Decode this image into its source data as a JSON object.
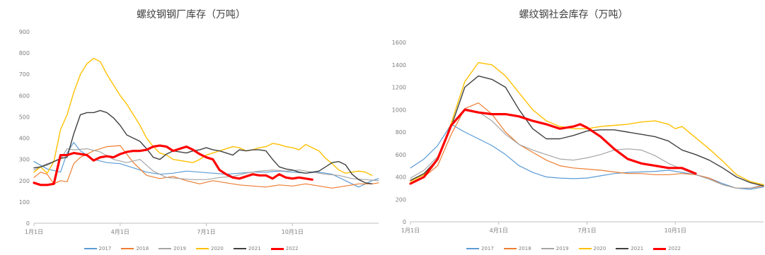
{
  "chart_data": [
    {
      "type": "line",
      "title": "螺纹钢钢厂库存（万吨）",
      "ylim": [
        0,
        900
      ],
      "yticks": [
        0,
        100,
        200,
        300,
        400,
        500,
        600,
        700,
        800,
        900
      ],
      "xlim": [
        0,
        52
      ],
      "x_ticks": [
        {
          "x": 0,
          "label": "1月1日"
        },
        {
          "x": 13,
          "label": "4月1日"
        },
        {
          "x": 26,
          "label": "7月1日"
        },
        {
          "x": 39,
          "label": "10月1日"
        }
      ],
      "legend": "bottom",
      "series": [
        {
          "name": "2017",
          "color": "#5b9bd5",
          "width": 1.2,
          "x": [
            0,
            2,
            4,
            5,
            6,
            7,
            9,
            11,
            13,
            15,
            17,
            19,
            21,
            23,
            25,
            27,
            29,
            31,
            33,
            35,
            37,
            39,
            41,
            43,
            45,
            47,
            49,
            51,
            52
          ],
          "y": [
            290,
            255,
            240,
            330,
            380,
            340,
            300,
            285,
            280,
            260,
            240,
            230,
            235,
            245,
            240,
            235,
            230,
            235,
            240,
            240,
            245,
            240,
            235,
            240,
            230,
            200,
            170,
            200,
            210
          ]
        },
        {
          "name": "2018",
          "color": "#ed7d31",
          "width": 1.2,
          "x": [
            0,
            1,
            2,
            3,
            4,
            5,
            6,
            7,
            9,
            11,
            13,
            15,
            17,
            19,
            21,
            23,
            25,
            27,
            29,
            31,
            33,
            35,
            37,
            39,
            41,
            43,
            45,
            47,
            49,
            51,
            52
          ],
          "y": [
            215,
            240,
            230,
            185,
            200,
            195,
            280,
            310,
            340,
            360,
            365,
            285,
            225,
            210,
            220,
            200,
            185,
            200,
            190,
            180,
            175,
            170,
            180,
            175,
            185,
            175,
            165,
            175,
            185,
            185,
            190
          ]
        },
        {
          "name": "2019",
          "color": "#a5a5a5",
          "width": 1.2,
          "x": [
            0,
            2,
            4,
            5,
            6,
            8,
            10,
            12,
            14,
            16,
            18,
            20,
            22,
            24,
            26,
            28,
            30,
            32,
            34,
            36,
            38,
            40,
            42,
            44,
            46,
            48,
            50,
            52
          ],
          "y": [
            250,
            280,
            300,
            350,
            345,
            350,
            335,
            300,
            285,
            300,
            245,
            215,
            210,
            205,
            205,
            215,
            220,
            235,
            245,
            250,
            245,
            250,
            240,
            230,
            225,
            210,
            205,
            200
          ]
        },
        {
          "name": "2020",
          "color": "#ffc000",
          "width": 1.4,
          "x": [
            0,
            1,
            2,
            3,
            4,
            5,
            6,
            7,
            8,
            9,
            10,
            11,
            12,
            13,
            14,
            15,
            16,
            17,
            18,
            19,
            20,
            21,
            22,
            23,
            24,
            25,
            26,
            27,
            28,
            29,
            30,
            31,
            32,
            33,
            34,
            35,
            36,
            37,
            38,
            39,
            40,
            41,
            42,
            43,
            44,
            45,
            46,
            47,
            48,
            49,
            50,
            51
          ],
          "y": [
            240,
            265,
            235,
            290,
            440,
            510,
            615,
            700,
            750,
            775,
            760,
            700,
            650,
            600,
            560,
            510,
            460,
            400,
            360,
            330,
            320,
            300,
            295,
            290,
            285,
            300,
            320,
            330,
            340,
            350,
            360,
            355,
            340,
            345,
            355,
            360,
            375,
            370,
            360,
            355,
            345,
            370,
            355,
            340,
            305,
            280,
            250,
            235,
            240,
            245,
            240,
            225
          ]
        },
        {
          "name": "2021",
          "color": "#404040",
          "width": 1.4,
          "x": [
            0,
            1,
            2,
            3,
            4,
            5,
            6,
            7,
            8,
            9,
            10,
            11,
            12,
            13,
            14,
            15,
            16,
            17,
            18,
            19,
            20,
            21,
            22,
            23,
            24,
            25,
            26,
            27,
            28,
            29,
            30,
            31,
            32,
            33,
            34,
            35,
            36,
            37,
            38,
            39,
            40,
            41,
            42,
            43,
            44,
            45,
            46,
            47,
            48,
            49,
            50,
            51
          ],
          "y": [
            260,
            265,
            275,
            290,
            305,
            310,
            420,
            510,
            520,
            520,
            530,
            520,
            495,
            460,
            415,
            400,
            385,
            350,
            310,
            300,
            325,
            340,
            335,
            330,
            340,
            345,
            355,
            345,
            340,
            330,
            320,
            345,
            340,
            345,
            345,
            340,
            300,
            265,
            255,
            250,
            240,
            235,
            240,
            245,
            265,
            285,
            290,
            275,
            230,
            205,
            190,
            185
          ]
        },
        {
          "name": "2022",
          "color": "#ff0000",
          "width": 3.2,
          "x": [
            0,
            1,
            2,
            3,
            4,
            5,
            6,
            7,
            8,
            9,
            10,
            11,
            12,
            13,
            14,
            15,
            16,
            17,
            18,
            19,
            20,
            21,
            22,
            23,
            24,
            25,
            26,
            27,
            28,
            29,
            30,
            31,
            32,
            33,
            34,
            35,
            36,
            37,
            38,
            39,
            40,
            41,
            42
          ],
          "y": [
            190,
            180,
            180,
            185,
            320,
            320,
            330,
            325,
            320,
            295,
            310,
            315,
            310,
            325,
            335,
            340,
            340,
            345,
            360,
            365,
            360,
            340,
            350,
            360,
            345,
            325,
            310,
            300,
            250,
            230,
            215,
            210,
            220,
            230,
            225,
            225,
            210,
            230,
            215,
            210,
            215,
            210,
            205
          ]
        }
      ]
    },
    {
      "type": "line",
      "title": "螺纹钢社会库存（万吨）",
      "ylim": [
        0,
        1600
      ],
      "yticks": [
        0,
        200,
        400,
        600,
        800,
        1000,
        1200,
        1400,
        1600
      ],
      "xlim": [
        0,
        52
      ],
      "x_ticks": [
        {
          "x": 0,
          "label": "1月1日"
        },
        {
          "x": 13,
          "label": "4月1日"
        },
        {
          "x": 26,
          "label": "7月1日"
        },
        {
          "x": 39,
          "label": "10月1日"
        }
      ],
      "legend": "bottom",
      "series": [
        {
          "name": "2017",
          "color": "#5b9bd5",
          "width": 1.2,
          "x": [
            0,
            2,
            4,
            6,
            8,
            10,
            12,
            14,
            16,
            18,
            20,
            22,
            24,
            26,
            28,
            30,
            32,
            34,
            36,
            38,
            40,
            42,
            44,
            46,
            48,
            50,
            52
          ],
          "y": [
            480,
            560,
            680,
            870,
            800,
            740,
            680,
            600,
            500,
            440,
            400,
            390,
            385,
            390,
            410,
            430,
            440,
            445,
            450,
            460,
            440,
            420,
            390,
            340,
            300,
            290,
            310
          ]
        },
        {
          "name": "2018",
          "color": "#ed7d31",
          "width": 1.2,
          "x": [
            0,
            2,
            4,
            6,
            8,
            10,
            12,
            14,
            16,
            18,
            20,
            22,
            24,
            26,
            28,
            30,
            32,
            34,
            36,
            38,
            40,
            42,
            44,
            46,
            48,
            50,
            52
          ],
          "y": [
            340,
            400,
            500,
            780,
            1010,
            1060,
            960,
            800,
            690,
            620,
            550,
            500,
            480,
            470,
            460,
            445,
            430,
            430,
            420,
            420,
            430,
            420,
            390,
            330,
            300,
            300,
            320
          ]
        },
        {
          "name": "2019",
          "color": "#a5a5a5",
          "width": 1.2,
          "x": [
            0,
            2,
            4,
            6,
            8,
            10,
            12,
            14,
            16,
            18,
            20,
            22,
            24,
            26,
            28,
            30,
            32,
            34,
            36,
            38,
            40,
            42,
            44,
            46,
            48,
            50,
            52
          ],
          "y": [
            390,
            460,
            580,
            850,
            1010,
            980,
            900,
            780,
            690,
            640,
            600,
            560,
            550,
            570,
            600,
            640,
            650,
            640,
            590,
            520,
            470,
            420,
            380,
            330,
            300,
            300,
            330
          ]
        },
        {
          "name": "2020",
          "color": "#ffc000",
          "width": 1.4,
          "x": [
            0,
            2,
            4,
            6,
            8,
            10,
            12,
            14,
            16,
            18,
            20,
            22,
            24,
            26,
            28,
            30,
            32,
            34,
            36,
            38,
            39,
            40,
            42,
            44,
            46,
            48,
            50,
            52
          ],
          "y": [
            360,
            420,
            560,
            880,
            1250,
            1420,
            1400,
            1300,
            1150,
            1000,
            900,
            850,
            830,
            830,
            850,
            860,
            870,
            890,
            900,
            870,
            830,
            850,
            750,
            650,
            540,
            420,
            360,
            330
          ]
        },
        {
          "name": "2021",
          "color": "#404040",
          "width": 1.4,
          "x": [
            0,
            2,
            4,
            6,
            8,
            10,
            12,
            14,
            16,
            18,
            20,
            22,
            24,
            26,
            28,
            30,
            32,
            34,
            36,
            38,
            40,
            42,
            44,
            46,
            48,
            50,
            52
          ],
          "y": [
            370,
            430,
            560,
            850,
            1200,
            1300,
            1270,
            1200,
            1000,
            830,
            740,
            740,
            770,
            810,
            820,
            820,
            800,
            780,
            760,
            720,
            640,
            600,
            550,
            480,
            400,
            350,
            320
          ]
        },
        {
          "name": "2022",
          "color": "#ff0000",
          "width": 3.2,
          "x": [
            0,
            2,
            4,
            6,
            8,
            10,
            12,
            14,
            16,
            18,
            20,
            22,
            24,
            25,
            26,
            28,
            30,
            32,
            34,
            36,
            38,
            40,
            42
          ],
          "y": [
            340,
            400,
            560,
            860,
            1000,
            975,
            960,
            960,
            940,
            900,
            870,
            830,
            850,
            870,
            840,
            760,
            650,
            560,
            520,
            500,
            480,
            480,
            430
          ]
        }
      ]
    }
  ]
}
